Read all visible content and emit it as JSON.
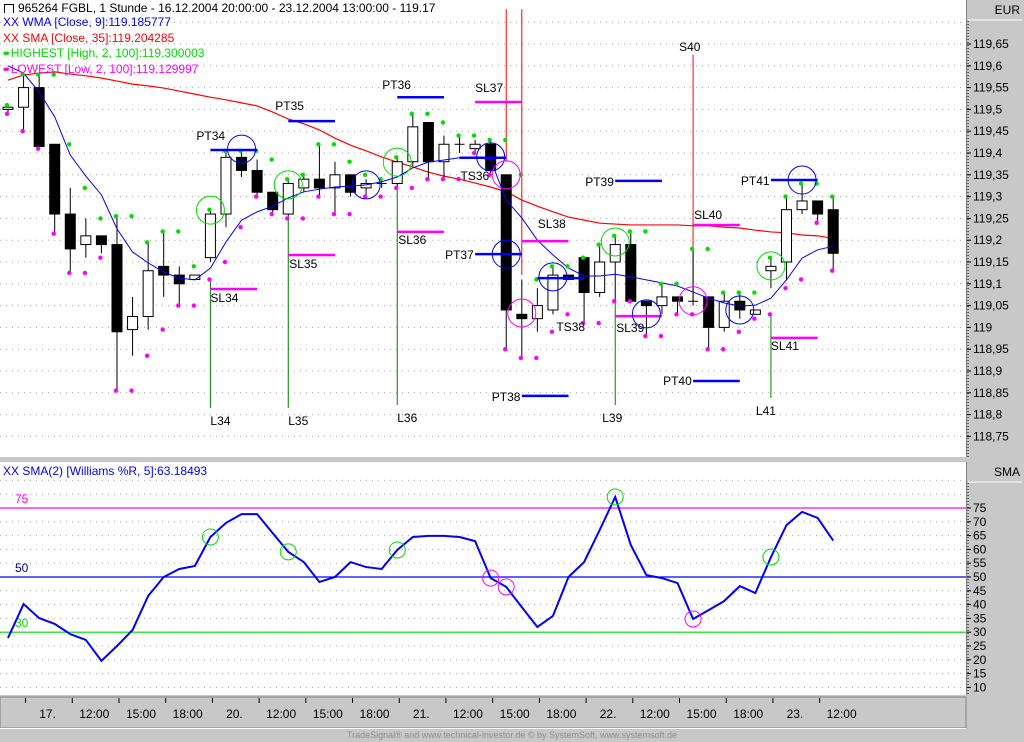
{
  "window": {
    "title": "965264  FGBL, 1 Stunde - 16.12.2004 20:00:00 - 23.12.2004 13:00:00 - 119.17",
    "title_icon": "chart-window-icon"
  },
  "price_pane": {
    "axis_unit": "EUR",
    "legend": [
      {
        "marker": "XX",
        "text": "WMA [Close, 9]:119.185777",
        "color": "#0000ff"
      },
      {
        "marker": "XX",
        "text": "SMA [Close, 35]:119.204285",
        "color": "#ff0000"
      },
      {
        "marker": "dots",
        "text": "HIGHEST [High, 2, 100]:119.300003",
        "color": "#00dd00"
      },
      {
        "marker": "dots",
        "text": "LOWEST [Low, 2, 100]:119.129997",
        "color": "#ff00ff"
      }
    ],
    "y_ticks": [
      "119,65",
      "119,6",
      "119,55",
      "119,5",
      "119,45",
      "119,4",
      "119,35",
      "119,3",
      "119,25",
      "119,2",
      "119,15",
      "119,1",
      "119,05",
      "119",
      "118,95",
      "118,9",
      "118,85",
      "118,8",
      "118,75"
    ]
  },
  "oscillator_pane": {
    "axis_unit": "SMA",
    "legend": {
      "marker": "XX",
      "text": "SMA(2) [Williams %R, 5]:63.18493",
      "color": "#0000ff"
    },
    "y_ticks": [
      "75",
      "70",
      "65",
      "60",
      "55",
      "50",
      "45",
      "40",
      "35",
      "30",
      "25",
      "20",
      "15",
      "10"
    ],
    "levels": [
      {
        "value": 75,
        "label": "75",
        "color": "#ff00ff"
      },
      {
        "value": 50,
        "label": "50",
        "color": "#0000ff"
      },
      {
        "value": 30,
        "label": "30",
        "color": "#00dd00"
      }
    ]
  },
  "time_axis": {
    "ticks": [
      {
        "bar": 1,
        "label": "17."
      },
      {
        "bar": 4,
        "label": "12:00"
      },
      {
        "bar": 7,
        "label": "15:00"
      },
      {
        "bar": 10,
        "label": "18:00"
      },
      {
        "bar": 13,
        "label": "20."
      },
      {
        "bar": 16,
        "label": "12:00"
      },
      {
        "bar": 19,
        "label": "15:00"
      },
      {
        "bar": 22,
        "label": "18:00"
      },
      {
        "bar": 25,
        "label": "21."
      },
      {
        "bar": 28,
        "label": "12:00"
      },
      {
        "bar": 31,
        "label": "15:00"
      },
      {
        "bar": 34,
        "label": "18:00"
      },
      {
        "bar": 37,
        "label": "22."
      },
      {
        "bar": 40,
        "label": "12:00"
      },
      {
        "bar": 43,
        "label": "15:00"
      },
      {
        "bar": 46,
        "label": "18:00"
      },
      {
        "bar": 49,
        "label": "23."
      },
      {
        "bar": 52,
        "label": "12:00"
      }
    ]
  },
  "footer": "TradeSignal® and www.technical-investor.de © by SystemSoft, www.systemsoft.de",
  "chart_data": [
    {
      "type": "candlestick",
      "ylim": [
        118.72,
        119.74
      ],
      "grid": true,
      "fields": [
        "open",
        "high",
        "low",
        "close"
      ],
      "ohlc": [
        [
          119.5,
          119.51,
          119.49,
          119.505
        ],
        [
          119.505,
          119.58,
          119.45,
          119.55
        ],
        [
          119.55,
          119.58,
          119.41,
          119.415
        ],
        [
          119.42,
          119.42,
          119.215,
          119.26
        ],
        [
          119.26,
          119.32,
          119.125,
          119.18
        ],
        [
          119.19,
          119.25,
          119.16,
          119.21
        ],
        [
          119.21,
          119.21,
          119.17,
          119.19
        ],
        [
          119.19,
          119.255,
          118.855,
          118.99
        ],
        [
          118.995,
          119.07,
          118.935,
          119.025
        ],
        [
          119.025,
          119.195,
          118.995,
          119.13
        ],
        [
          119.14,
          119.22,
          119.07,
          119.12
        ],
        [
          119.12,
          119.14,
          119.05,
          119.1
        ],
        [
          119.11,
          119.12,
          119.11,
          119.12
        ],
        [
          119.16,
          119.27,
          119.15,
          119.26
        ],
        [
          119.26,
          119.405,
          119.23,
          119.39
        ],
        [
          119.39,
          119.405,
          119.345,
          119.36
        ],
        [
          119.36,
          119.385,
          119.3,
          119.31
        ],
        [
          119.31,
          119.31,
          119.26,
          119.27
        ],
        [
          119.26,
          119.34,
          119.25,
          119.33
        ],
        [
          119.32,
          119.35,
          119.31,
          119.34
        ],
        [
          119.34,
          119.42,
          119.3,
          119.32
        ],
        [
          119.32,
          119.38,
          119.26,
          119.35
        ],
        [
          119.35,
          119.35,
          119.3,
          119.31
        ],
        [
          119.32,
          119.34,
          119.3,
          119.33
        ],
        [
          119.33,
          119.34,
          119.32,
          119.33
        ],
        [
          119.33,
          119.39,
          119.32,
          119.38
        ],
        [
          119.38,
          119.49,
          119.37,
          119.46
        ],
        [
          119.47,
          119.47,
          119.34,
          119.38
        ],
        [
          119.38,
          119.44,
          119.34,
          119.42
        ],
        [
          119.42,
          119.44,
          119.4,
          119.42
        ],
        [
          119.41,
          119.43,
          119.4,
          119.42
        ],
        [
          119.42,
          119.43,
          119.35,
          119.36
        ],
        [
          119.35,
          119.35,
          118.95,
          119.04
        ],
        [
          119.03,
          119.11,
          118.93,
          119.02
        ],
        [
          119.02,
          119.09,
          118.99,
          119.05
        ],
        [
          119.04,
          119.14,
          119.03,
          119.12
        ],
        [
          119.12,
          119.12,
          119.11,
          119.11
        ],
        [
          119.16,
          119.16,
          119.01,
          119.08
        ],
        [
          119.08,
          119.19,
          119.07,
          119.15
        ],
        [
          119.15,
          119.21,
          119.06,
          119.19
        ],
        [
          119.19,
          119.22,
          119.06,
          119.06
        ],
        [
          119.06,
          119.06,
          118.98,
          119.05
        ],
        [
          119.05,
          119.1,
          119.03,
          119.07
        ],
        [
          119.07,
          119.07,
          119.03,
          119.06
        ],
        [
          119.06,
          119.18,
          119.05,
          119.06
        ],
        [
          119.07,
          119.07,
          118.95,
          119.0
        ],
        [
          119.0,
          119.08,
          118.99,
          119.06
        ],
        [
          119.06,
          119.08,
          119.02,
          119.04
        ],
        [
          119.03,
          119.04,
          119.03,
          119.04
        ],
        [
          119.13,
          119.16,
          119.09,
          119.14
        ],
        [
          119.15,
          119.3,
          119.11,
          119.27
        ],
        [
          119.27,
          119.33,
          119.26,
          119.29
        ],
        [
          119.29,
          119.29,
          119.24,
          119.26
        ],
        [
          119.27,
          119.3,
          119.13,
          119.17
        ]
      ],
      "overlays": [
        {
          "name": "WMA [Close, 9]",
          "color": "#0000ff",
          "values": [
            119.6,
            119.583,
            119.54,
            119.483,
            119.395,
            119.347,
            119.304,
            119.226,
            119.173,
            119.148,
            119.127,
            119.113,
            119.109,
            119.136,
            119.196,
            119.246,
            119.265,
            119.278,
            119.297,
            119.311,
            119.317,
            119.322,
            119.324,
            119.327,
            119.334,
            119.345,
            119.366,
            119.379,
            119.384,
            119.389,
            119.391,
            119.384,
            119.292,
            119.251,
            119.2,
            119.166,
            119.136,
            119.118,
            119.118,
            119.122,
            119.116,
            119.109,
            119.102,
            119.095,
            119.081,
            119.067,
            119.056,
            119.049,
            119.051,
            119.067,
            119.109,
            119.159,
            119.178,
            119.186
          ]
        },
        {
          "name": "SMA [Close, 35]",
          "color": "#ff0000",
          "values": [
            119.567,
            119.579,
            119.583,
            119.586,
            119.581,
            119.577,
            119.572,
            119.565,
            119.558,
            119.554,
            119.549,
            119.542,
            119.535,
            119.528,
            119.522,
            119.515,
            119.508,
            119.494,
            119.478,
            119.467,
            119.453,
            119.434,
            119.418,
            119.405,
            119.391,
            119.379,
            119.368,
            119.356,
            119.347,
            119.34,
            119.331,
            119.322,
            119.311,
            119.292,
            119.278,
            119.265,
            119.253,
            119.246,
            119.239,
            119.237,
            119.235,
            119.235,
            119.235,
            119.235,
            119.233,
            119.233,
            119.23,
            119.228,
            119.223,
            119.219,
            119.217,
            119.212,
            119.21,
            119.204
          ]
        }
      ],
      "level_lines": [
        {
          "label": "PT34",
          "kind": "target",
          "price": 119.407,
          "from_bar": 13,
          "to_bar": 16,
          "color": "#0000ff"
        },
        {
          "label": "SL34",
          "kind": "stop",
          "price": 119.088,
          "from_bar": 13,
          "to_bar": 16,
          "color": "#ff00ff"
        },
        {
          "label": "PT35",
          "kind": "target",
          "price": 119.473,
          "from_bar": 18,
          "to_bar": 21,
          "color": "#0000ff"
        },
        {
          "label": "SL35",
          "kind": "stop",
          "price": 119.166,
          "from_bar": 18,
          "to_bar": 21,
          "color": "#ff00ff"
        },
        {
          "label": "PT36",
          "kind": "target",
          "price": 119.528,
          "from_bar": 25,
          "to_bar": 28,
          "color": "#0000ff"
        },
        {
          "label": "SL36",
          "kind": "stop",
          "price": 119.219,
          "from_bar": 25,
          "to_bar": 28,
          "color": "#ff00ff"
        },
        {
          "label": "TS36",
          "kind": "trailing-stop",
          "price": 119.389,
          "from_bar": 29,
          "to_bar": 32,
          "color": "#0000ff"
        },
        {
          "label": "SL37",
          "kind": "stop",
          "price": 119.517,
          "from_bar": 30,
          "to_bar": 33,
          "color": "#ff00ff"
        },
        {
          "label": "PT37",
          "kind": "target",
          "price": 119.168,
          "from_bar": 30,
          "to_bar": 33,
          "color": "#0000ff"
        },
        {
          "label": "PT38",
          "kind": "target",
          "price": 118.843,
          "from_bar": 33,
          "to_bar": 36,
          "color": "#0000ff"
        },
        {
          "label": "SL38",
          "kind": "stop",
          "price": 119.198,
          "from_bar": 33,
          "to_bar": 36,
          "color": "#ff00ff"
        },
        {
          "label": "TS38",
          "kind": "trailing-stop",
          "price": 119.113,
          "from_bar": 34,
          "to_bar": 37,
          "color": "#0000ff"
        },
        {
          "label": "PT39",
          "kind": "target",
          "price": 119.336,
          "from_bar": 39,
          "to_bar": 42,
          "color": "#0000ff"
        },
        {
          "label": "SL39",
          "kind": "stop",
          "price": 119.026,
          "from_bar": 39,
          "to_bar": 42,
          "color": "#ff00ff"
        },
        {
          "label": "SL40",
          "kind": "stop",
          "price": 119.235,
          "from_bar": 44,
          "to_bar": 47,
          "color": "#ff00ff"
        },
        {
          "label": "PT40",
          "kind": "target",
          "price": 118.877,
          "from_bar": 44,
          "to_bar": 47,
          "color": "#0000ff"
        },
        {
          "label": "PT41",
          "kind": "target",
          "price": 119.338,
          "from_bar": 49,
          "to_bar": 52,
          "color": "#0000ff"
        },
        {
          "label": "SL41",
          "kind": "stop",
          "price": 118.976,
          "from_bar": 49,
          "to_bar": 52,
          "color": "#ff00ff"
        }
      ],
      "entries": [
        {
          "label": "L34",
          "bar": 13,
          "direction": "long",
          "color": "#008000"
        },
        {
          "label": "L35",
          "bar": 18,
          "direction": "long",
          "color": "#008000"
        },
        {
          "label": "L36",
          "bar": 25,
          "direction": "long",
          "color": "#008000"
        },
        {
          "label": "L39",
          "bar": 39,
          "direction": "long",
          "color": "#008000"
        },
        {
          "label": "L41",
          "bar": 49,
          "direction": "long",
          "color": "#008000"
        }
      ],
      "short_markers": [
        {
          "label": "",
          "bar": 32,
          "from_price": 119.73,
          "to_price": 119.38,
          "color": "#ff0000"
        },
        {
          "label": "",
          "bar": 33,
          "from_price": 119.73,
          "to_price": 119.12,
          "color": "#ff0000"
        },
        {
          "label": "S40",
          "bar": 44,
          "from_price": 119.625,
          "to_price": 119.06,
          "color": "#ff0000"
        }
      ],
      "circles": [
        {
          "bar": 13,
          "price": 119.269,
          "color": "#00dd00"
        },
        {
          "bar": 18,
          "price": 119.327,
          "color": "#00dd00"
        },
        {
          "bar": 25,
          "price": 119.379,
          "color": "#00dd00"
        },
        {
          "bar": 39,
          "price": 119.196,
          "color": "#00dd00"
        },
        {
          "bar": 49,
          "price": 119.141,
          "color": "#00dd00"
        },
        {
          "bar": 15,
          "price": 119.409,
          "color": "#0000ff"
        },
        {
          "bar": 23,
          "price": 119.327,
          "color": "#0000ff"
        },
        {
          "bar": 31,
          "price": 119.391,
          "color": "#0000ff"
        },
        {
          "bar": 32,
          "price": 119.168,
          "color": "#0000ff"
        },
        {
          "bar": 35,
          "price": 119.116,
          "color": "#0000ff"
        },
        {
          "bar": 41,
          "price": 119.031,
          "color": "#0000ff"
        },
        {
          "bar": 47,
          "price": 119.04,
          "color": "#0000ff"
        },
        {
          "bar": 51,
          "price": 119.338,
          "color": "#0000ff"
        },
        {
          "bar": 32,
          "price": 119.35,
          "color": "#ff00ff"
        },
        {
          "bar": 33,
          "price": 119.033,
          "color": "#ff00ff"
        },
        {
          "bar": 44,
          "price": 119.061,
          "color": "#ff00ff"
        }
      ]
    },
    {
      "type": "line",
      "name": "SMA(2) [Williams %R, 5]",
      "color": "#0000ff",
      "ylim": [
        7,
        88
      ],
      "grid": true,
      "values": [
        27.9,
        40.2,
        35.1,
        33.0,
        29.3,
        27.2,
        19.6,
        25.0,
        30.8,
        43.1,
        50.0,
        52.9,
        54.0,
        64.5,
        69.6,
        72.8,
        72.8,
        65.9,
        59.1,
        55.4,
        48.2,
        50.0,
        55.4,
        53.6,
        52.9,
        59.8,
        64.5,
        64.9,
        64.9,
        64.5,
        63.0,
        49.6,
        46.4,
        39.1,
        31.9,
        35.9,
        50.0,
        55.4,
        67.0,
        79.0,
        61.6,
        50.7,
        49.6,
        47.8,
        34.8,
        38.0,
        41.3,
        46.7,
        44.2,
        57.2,
        68.8,
        73.6,
        71.4,
        63.2
      ],
      "circles": [
        {
          "bar": 13,
          "value": 64.5,
          "color": "#00dd00"
        },
        {
          "bar": 18,
          "value": 59.1,
          "color": "#00dd00"
        },
        {
          "bar": 25,
          "value": 59.8,
          "color": "#00dd00"
        },
        {
          "bar": 39,
          "value": 79.0,
          "color": "#00dd00"
        },
        {
          "bar": 49,
          "value": 57.2,
          "color": "#00dd00"
        },
        {
          "bar": 31,
          "value": 49.6,
          "color": "#ff00ff"
        },
        {
          "bar": 32,
          "value": 46.4,
          "color": "#ff00ff"
        },
        {
          "bar": 44,
          "value": 34.8,
          "color": "#ff00ff"
        }
      ]
    }
  ]
}
